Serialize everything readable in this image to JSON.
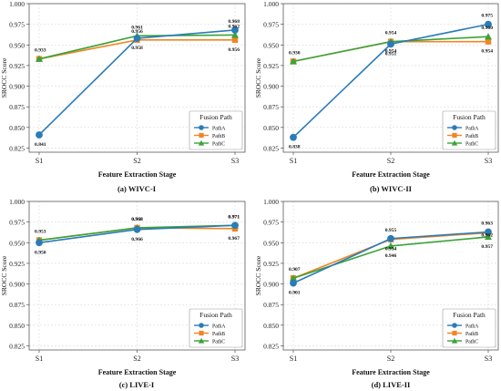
{
  "figure": {
    "panels": [
      "(a) WIVC-I",
      "(b) WIVC-II",
      "(c) LIVE-I",
      "(d) LIVE-II"
    ]
  },
  "colors": {
    "PathA": "#2b7bb9",
    "PathB": "#f28522",
    "PathC": "#3aa33a",
    "grid": "#d9d9d9",
    "axis": "#333333"
  },
  "chart_data": [
    {
      "type": "line",
      "title": "(a) WIVC-I",
      "xlabel": "Feature Extraction Stage",
      "ylabel": "SROCC Score",
      "categories": [
        "S1",
        "S2",
        "S3"
      ],
      "ylim": [
        0.82,
        1.0
      ],
      "yticks": [
        "0.825",
        "0.850",
        "0.875",
        "0.900",
        "0.925",
        "0.950",
        "0.975",
        "1.000"
      ],
      "grid": true,
      "legend": {
        "title": "Fusion Path",
        "placement": "bottom-right"
      },
      "series": [
        {
          "name": "PathA",
          "values": [
            0.841,
            0.958,
            0.968
          ],
          "labels": [
            "0.841",
            "0.958",
            "0.968"
          ]
        },
        {
          "name": "PathB",
          "values": [
            0.933,
            0.956,
            0.956
          ],
          "labels": [
            "",
            "0.956",
            "0.956"
          ]
        },
        {
          "name": "PathC",
          "values": [
            0.933,
            0.961,
            0.962
          ],
          "labels": [
            "0.933",
            "0.961",
            "0.962"
          ]
        }
      ]
    },
    {
      "type": "line",
      "title": "(b) WIVC-II",
      "xlabel": "Feature Extraction Stage",
      "ylabel": "SROCC Score",
      "categories": [
        "S1",
        "S2",
        "S3"
      ],
      "ylim": [
        0.82,
        1.0
      ],
      "yticks": [
        "0.825",
        "0.850",
        "0.875",
        "0.900",
        "0.925",
        "0.950",
        "0.975",
        "1.000"
      ],
      "grid": true,
      "legend": {
        "title": "Fusion Path",
        "placement": "bottom-right"
      },
      "series": [
        {
          "name": "PathA",
          "values": [
            0.838,
            0.951,
            0.975
          ],
          "labels": [
            "0.838",
            "0.951",
            "0.975"
          ]
        },
        {
          "name": "PathB",
          "values": [
            0.93,
            0.954,
            0.954
          ],
          "labels": [
            "",
            "0.954",
            "0.954"
          ]
        },
        {
          "name": "PathC",
          "values": [
            0.93,
            0.954,
            0.96
          ],
          "labels": [
            "0.930",
            "0.954",
            "0.960"
          ]
        }
      ]
    },
    {
      "type": "line",
      "title": "(c) LIVE-I",
      "xlabel": "Feature Extraction Stage",
      "ylabel": "SROCC Score",
      "categories": [
        "S1",
        "S2",
        "S3"
      ],
      "ylim": [
        0.82,
        1.0
      ],
      "yticks": [
        "0.825",
        "0.850",
        "0.875",
        "0.900",
        "0.925",
        "0.950",
        "0.975",
        "1.000"
      ],
      "grid": true,
      "legend": {
        "title": "Fusion Path",
        "placement": "bottom-right"
      },
      "series": [
        {
          "name": "PathA",
          "values": [
            0.95,
            0.966,
            0.971
          ],
          "labels": [
            "0.950",
            "0.966",
            "0.971"
          ]
        },
        {
          "name": "PathB",
          "values": [
            0.953,
            0.968,
            0.967
          ],
          "labels": [
            "",
            "0.968",
            "0.967"
          ]
        },
        {
          "name": "PathC",
          "values": [
            0.953,
            0.968,
            0.971
          ],
          "labels": [
            "0.953",
            "0.968",
            "0.971"
          ]
        }
      ]
    },
    {
      "type": "line",
      "title": "(d) LIVE-II",
      "xlabel": "Feature Extraction Stage",
      "ylabel": "SROCC Score",
      "categories": [
        "S1",
        "S2",
        "S3"
      ],
      "ylim": [
        0.82,
        1.0
      ],
      "yticks": [
        "0.825",
        "0.850",
        "0.875",
        "0.900",
        "0.925",
        "0.950",
        "0.975",
        "1.000"
      ],
      "grid": true,
      "legend": {
        "title": "Fusion Path",
        "placement": "bottom-right"
      },
      "series": [
        {
          "name": "PathA",
          "values": [
            0.901,
            0.955,
            0.963
          ],
          "labels": [
            "0.901",
            "0.955",
            "0.963"
          ]
        },
        {
          "name": "PathB",
          "values": [
            0.907,
            0.954,
            0.962
          ],
          "labels": [
            "",
            "0.954",
            "0.962"
          ]
        },
        {
          "name": "PathC",
          "values": [
            0.907,
            0.946,
            0.957
          ],
          "labels": [
            "0.907",
            "0.946",
            "0.957"
          ]
        }
      ]
    }
  ]
}
